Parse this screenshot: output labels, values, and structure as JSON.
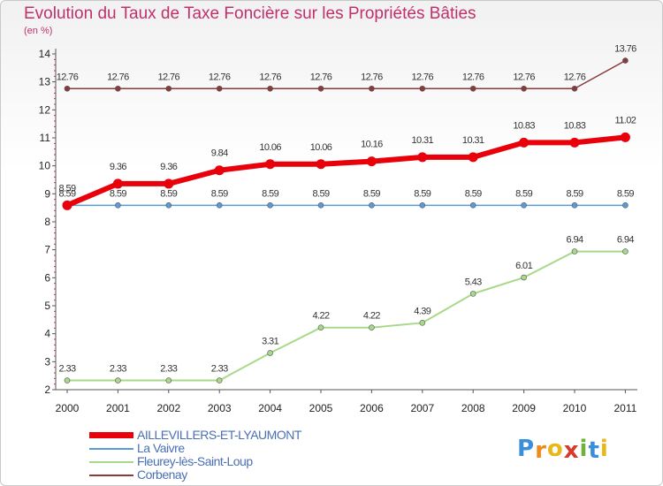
{
  "title": "Evolution du Taux de Taxe Foncière sur les Propriétés Bâties",
  "subtitle": "(en %)",
  "logo": [
    "P",
    "r",
    "o",
    "x",
    "i",
    "t",
    "i"
  ],
  "logo_colors": [
    "#3a8fd9",
    "#f08a1c",
    "#e8b81a",
    "#d63a2a",
    "#6bb33a",
    "#3a8fd9",
    "#e8b81a"
  ],
  "chart_data": {
    "type": "line",
    "title": "Evolution du Taux de Taxe Foncière sur les Propriétés Bâties",
    "ylabel": "(en %)",
    "xlabel": "",
    "categories": [
      "2000",
      "2001",
      "2002",
      "2003",
      "2004",
      "2005",
      "2006",
      "2007",
      "2008",
      "2009",
      "2010",
      "2011"
    ],
    "ylim": [
      2,
      14
    ],
    "yticks": [
      2,
      3,
      4,
      5,
      6,
      7,
      8,
      9,
      10,
      11,
      12,
      13,
      14
    ],
    "series": [
      {
        "name": "AILLEVILLERS-ET-LYAUMONT",
        "color": "#e8000b",
        "width": "thick",
        "values": [
          8.59,
          9.36,
          9.36,
          9.84,
          10.06,
          10.06,
          10.16,
          10.31,
          10.31,
          10.83,
          10.83,
          11.02
        ],
        "labels": [
          "8.59",
          "9.36",
          "9.36",
          "9.84",
          "10.06",
          "10.06",
          "10.16",
          "10.31",
          "10.31",
          "10.83",
          "10.83",
          "11.02"
        ]
      },
      {
        "name": "La Vaivre",
        "color": "#5b9bd5",
        "width": "thin",
        "values": [
          8.59,
          8.59,
          8.59,
          8.59,
          8.59,
          8.59,
          8.59,
          8.59,
          8.59,
          8.59,
          8.59,
          8.59
        ],
        "labels": [
          "8.59",
          "8.59",
          "8.59",
          "8.59",
          "8.59",
          "8.59",
          "8.59",
          "8.59",
          "8.59",
          "8.59",
          "8.59",
          "8.59"
        ]
      },
      {
        "name": "Fleurey-lès-Saint-Loup",
        "color": "#a8d98a",
        "width": "medium",
        "values": [
          2.33,
          2.33,
          2.33,
          2.33,
          3.31,
          4.22,
          4.22,
          4.39,
          5.43,
          6.01,
          6.94,
          6.94
        ],
        "labels": [
          "2.33",
          "2.33",
          "2.33",
          "2.33",
          "3.31",
          "4.22",
          "4.22",
          "4.39",
          "5.43",
          "6.01",
          "6.94",
          "6.94"
        ]
      },
      {
        "name": "Corbenay",
        "color": "#8b3a3a",
        "width": "thin",
        "values": [
          12.76,
          12.76,
          12.76,
          12.76,
          12.76,
          12.76,
          12.76,
          12.76,
          12.76,
          12.76,
          12.76,
          13.76
        ],
        "labels": [
          "12.76",
          "12.76",
          "12.76",
          "12.76",
          "12.76",
          "12.76",
          "12.76",
          "12.76",
          "12.76",
          "12.76",
          "12.76",
          "13.76"
        ]
      }
    ]
  }
}
